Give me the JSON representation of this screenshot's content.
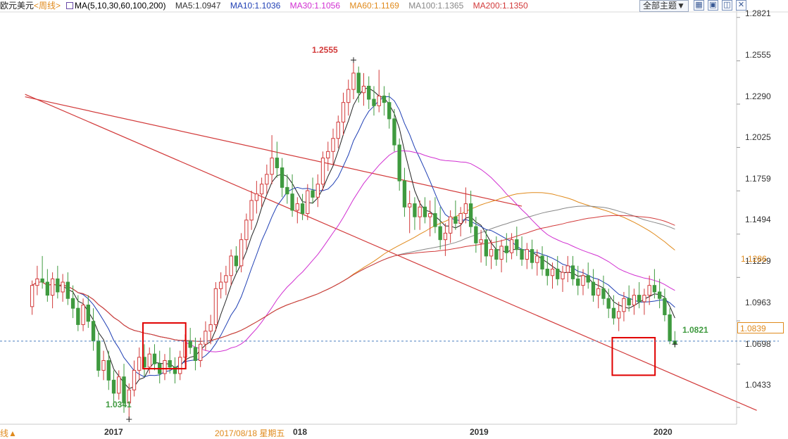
{
  "header": {
    "instrument": "欧元美元",
    "period": "<周线>",
    "ma_spec": "MA(5,10,30,60,100,200)",
    "ma_values": [
      {
        "label": "MA5:1.0947",
        "color": "#333333"
      },
      {
        "label": "MA10:1.1036",
        "color": "#1f3fb4"
      },
      {
        "label": "MA30:1.1056",
        "color": "#d12fd1"
      },
      {
        "label": "MA60:1.1169",
        "color": "#e08a1c"
      },
      {
        "label": "MA100:1.1365",
        "color": "#888888"
      },
      {
        "label": "MA200:1.1350",
        "color": "#d23a3a"
      }
    ],
    "theme_button": "全部主题▼",
    "icons": [
      "grid-icon",
      "window-icon",
      "maximize-icon",
      "close-icon"
    ]
  },
  "axis": {
    "y_ticks": [
      "1.2821",
      "1.2555",
      "1.2290",
      "1.2025",
      "1.1759",
      "1.1494",
      "1.1229",
      "1.0963",
      "1.0698",
      "1.0433"
    ],
    "price_tag": "1.1286",
    "current_box": "1.0839",
    "x_labels": [
      "2017",
      "018",
      "2019",
      "2020"
    ],
    "cursor_date": "2017/08/18 星期五",
    "bottom_left": "线▲"
  },
  "annotations": {
    "high": "1.2555",
    "low": "1.0341",
    "last": "1.0821"
  },
  "chart_data": {
    "type": "candlestick",
    "title": "欧元美元 <周线>",
    "ylim": [
      1.033,
      1.285
    ],
    "candles": [
      [
        1.105,
        1.121,
        1.1,
        1.118
      ],
      [
        1.118,
        1.13,
        1.112,
        1.122
      ],
      [
        1.122,
        1.136,
        1.116,
        1.12
      ],
      [
        1.12,
        1.128,
        1.108,
        1.112
      ],
      [
        1.112,
        1.126,
        1.104,
        1.122
      ],
      [
        1.122,
        1.13,
        1.11,
        1.114
      ],
      [
        1.114,
        1.125,
        1.108,
        1.12
      ],
      [
        1.12,
        1.126,
        1.106,
        1.11
      ],
      [
        1.11,
        1.118,
        1.098,
        1.104
      ],
      [
        1.104,
        1.112,
        1.09,
        1.094
      ],
      [
        1.094,
        1.11,
        1.09,
        1.106
      ],
      [
        1.106,
        1.112,
        1.092,
        1.096
      ],
      [
        1.096,
        1.104,
        1.078,
        1.084
      ],
      [
        1.084,
        1.09,
        1.062,
        1.066
      ],
      [
        1.066,
        1.078,
        1.06,
        1.072
      ],
      [
        1.072,
        1.078,
        1.054,
        1.06
      ],
      [
        1.06,
        1.066,
        1.046,
        1.052
      ],
      [
        1.052,
        1.066,
        1.048,
        1.062
      ],
      [
        1.062,
        1.07,
        1.04,
        1.046
      ],
      [
        1.046,
        1.058,
        1.036,
        1.054
      ],
      [
        1.054,
        1.072,
        1.05,
        1.066
      ],
      [
        1.066,
        1.08,
        1.06,
        1.074
      ],
      [
        1.074,
        1.082,
        1.062,
        1.068
      ],
      [
        1.068,
        1.08,
        1.064,
        1.076
      ],
      [
        1.076,
        1.082,
        1.066,
        1.07
      ],
      [
        1.07,
        1.078,
        1.058,
        1.064
      ],
      [
        1.064,
        1.076,
        1.06,
        1.072
      ],
      [
        1.072,
        1.08,
        1.064,
        1.068
      ],
      [
        1.068,
        1.074,
        1.058,
        1.064
      ],
      [
        1.064,
        1.078,
        1.06,
        1.074
      ],
      [
        1.074,
        1.088,
        1.07,
        1.084
      ],
      [
        1.084,
        1.092,
        1.076,
        1.08
      ],
      [
        1.08,
        1.086,
        1.066,
        1.072
      ],
      [
        1.072,
        1.086,
        1.068,
        1.082
      ],
      [
        1.082,
        1.096,
        1.078,
        1.09
      ],
      [
        1.09,
        1.1,
        1.082,
        1.094
      ],
      [
        1.094,
        1.12,
        1.09,
        1.116
      ],
      [
        1.116,
        1.126,
        1.11,
        1.12
      ],
      [
        1.12,
        1.13,
        1.112,
        1.124
      ],
      [
        1.124,
        1.14,
        1.118,
        1.136
      ],
      [
        1.136,
        1.142,
        1.126,
        1.13
      ],
      [
        1.13,
        1.15,
        1.126,
        1.146
      ],
      [
        1.146,
        1.162,
        1.14,
        1.158
      ],
      [
        1.158,
        1.176,
        1.152,
        1.17
      ],
      [
        1.17,
        1.182,
        1.162,
        1.174
      ],
      [
        1.174,
        1.184,
        1.166,
        1.18
      ],
      [
        1.18,
        1.192,
        1.174,
        1.186
      ],
      [
        1.186,
        1.21,
        1.18,
        1.196
      ],
      [
        1.196,
        1.206,
        1.184,
        1.19
      ],
      [
        1.19,
        1.196,
        1.172,
        1.178
      ],
      [
        1.178,
        1.186,
        1.168,
        1.174
      ],
      [
        1.174,
        1.186,
        1.16,
        1.164
      ],
      [
        1.164,
        1.172,
        1.156,
        1.168
      ],
      [
        1.168,
        1.174,
        1.158,
        1.162
      ],
      [
        1.162,
        1.18,
        1.158,
        1.176
      ],
      [
        1.176,
        1.184,
        1.168,
        1.172
      ],
      [
        1.172,
        1.186,
        1.166,
        1.18
      ],
      [
        1.18,
        1.2,
        1.176,
        1.196
      ],
      [
        1.196,
        1.206,
        1.188,
        1.2
      ],
      [
        1.2,
        1.214,
        1.192,
        1.208
      ],
      [
        1.208,
        1.222,
        1.202,
        1.218
      ],
      [
        1.218,
        1.236,
        1.21,
        1.23
      ],
      [
        1.23,
        1.244,
        1.222,
        1.238
      ],
      [
        1.238,
        1.256,
        1.232,
        1.248
      ],
      [
        1.248,
        1.252,
        1.23,
        1.236
      ],
      [
        1.236,
        1.248,
        1.228,
        1.24
      ],
      [
        1.24,
        1.246,
        1.226,
        1.232
      ],
      [
        1.232,
        1.24,
        1.222,
        1.228
      ],
      [
        1.228,
        1.25,
        1.224,
        1.234
      ],
      [
        1.234,
        1.24,
        1.222,
        1.23
      ],
      [
        1.23,
        1.236,
        1.214,
        1.22
      ],
      [
        1.22,
        1.226,
        1.2,
        1.204
      ],
      [
        1.204,
        1.208,
        1.176,
        1.182
      ],
      [
        1.182,
        1.19,
        1.16,
        1.166
      ],
      [
        1.166,
        1.176,
        1.15,
        1.168
      ],
      [
        1.168,
        1.172,
        1.152,
        1.16
      ],
      [
        1.16,
        1.17,
        1.152,
        1.166
      ],
      [
        1.166,
        1.172,
        1.156,
        1.16
      ],
      [
        1.16,
        1.17,
        1.148,
        1.162
      ],
      [
        1.162,
        1.172,
        1.15,
        1.154
      ],
      [
        1.154,
        1.166,
        1.14,
        1.146
      ],
      [
        1.146,
        1.156,
        1.136,
        1.15
      ],
      [
        1.15,
        1.164,
        1.144,
        1.16
      ],
      [
        1.16,
        1.17,
        1.152,
        1.156
      ],
      [
        1.156,
        1.166,
        1.148,
        1.162
      ],
      [
        1.162,
        1.178,
        1.156,
        1.168
      ],
      [
        1.168,
        1.176,
        1.15,
        1.154
      ],
      [
        1.154,
        1.16,
        1.138,
        1.144
      ],
      [
        1.144,
        1.152,
        1.132,
        1.146
      ],
      [
        1.146,
        1.152,
        1.13,
        1.136
      ],
      [
        1.136,
        1.146,
        1.128,
        1.14
      ],
      [
        1.14,
        1.148,
        1.13,
        1.134
      ],
      [
        1.134,
        1.146,
        1.126,
        1.142
      ],
      [
        1.142,
        1.15,
        1.132,
        1.138
      ],
      [
        1.138,
        1.15,
        1.134,
        1.146
      ],
      [
        1.146,
        1.154,
        1.136,
        1.14
      ],
      [
        1.14,
        1.148,
        1.13,
        1.134
      ],
      [
        1.134,
        1.144,
        1.128,
        1.14
      ],
      [
        1.14,
        1.146,
        1.128,
        1.132
      ],
      [
        1.132,
        1.14,
        1.124,
        1.136
      ],
      [
        1.136,
        1.142,
        1.124,
        1.128
      ],
      [
        1.128,
        1.136,
        1.118,
        1.124
      ],
      [
        1.124,
        1.132,
        1.116,
        1.128
      ],
      [
        1.128,
        1.136,
        1.118,
        1.122
      ],
      [
        1.122,
        1.13,
        1.114,
        1.126
      ],
      [
        1.126,
        1.136,
        1.12,
        1.13
      ],
      [
        1.13,
        1.136,
        1.118,
        1.122
      ],
      [
        1.122,
        1.13,
        1.112,
        1.118
      ],
      [
        1.118,
        1.128,
        1.112,
        1.124
      ],
      [
        1.124,
        1.132,
        1.116,
        1.12
      ],
      [
        1.12,
        1.128,
        1.108,
        1.112
      ],
      [
        1.112,
        1.122,
        1.104,
        1.116
      ],
      [
        1.116,
        1.124,
        1.106,
        1.11
      ],
      [
        1.11,
        1.116,
        1.098,
        1.104
      ],
      [
        1.104,
        1.112,
        1.094,
        1.098
      ],
      [
        1.098,
        1.108,
        1.09,
        1.102
      ],
      [
        1.102,
        1.114,
        1.096,
        1.11
      ],
      [
        1.11,
        1.118,
        1.102,
        1.106
      ],
      [
        1.106,
        1.116,
        1.1,
        1.112
      ],
      [
        1.112,
        1.12,
        1.104,
        1.108
      ],
      [
        1.108,
        1.116,
        1.1,
        1.112
      ],
      [
        1.112,
        1.124,
        1.106,
        1.118
      ],
      [
        1.118,
        1.128,
        1.11,
        1.114
      ],
      [
        1.114,
        1.122,
        1.104,
        1.11
      ],
      [
        1.11,
        1.116,
        1.096,
        1.1
      ],
      [
        1.1,
        1.104,
        1.082,
        1.084
      ],
      [
        1.084,
        1.09,
        1.08,
        1.082
      ]
    ],
    "ma_lines": [
      {
        "name": "MA5",
        "color": "#222222"
      },
      {
        "name": "MA10",
        "color": "#1f3fb4"
      },
      {
        "name": "MA30",
        "color": "#d12fd1"
      },
      {
        "name": "MA60",
        "color": "#e08a1c"
      },
      {
        "name": "MA100",
        "color": "#888888"
      },
      {
        "name": "MA200",
        "color": "#d23a3a"
      }
    ],
    "trendlines": [
      {
        "from": [
          0,
          1.2335
        ],
        "to": [
          96,
          1.1665
        ],
        "color": "#d23a3a"
      },
      {
        "from": [
          0,
          1.235
        ],
        "to": [
          131,
          1.063
        ],
        "color": "#d23a3a"
      }
    ],
    "highlight_boxes": [
      {
        "from": [
          22,
          1.095
        ],
        "to": [
          29,
          1.067
        ]
      },
      {
        "from": [
          114,
          1.086
        ],
        "to": [
          121,
          1.063
        ]
      }
    ],
    "reference_line": 1.0839,
    "colors": {
      "up": "#d23a3a",
      "down": "#3f9a3f",
      "grid": "#e6e6e6",
      "dashed": "#4a7fc0"
    }
  }
}
